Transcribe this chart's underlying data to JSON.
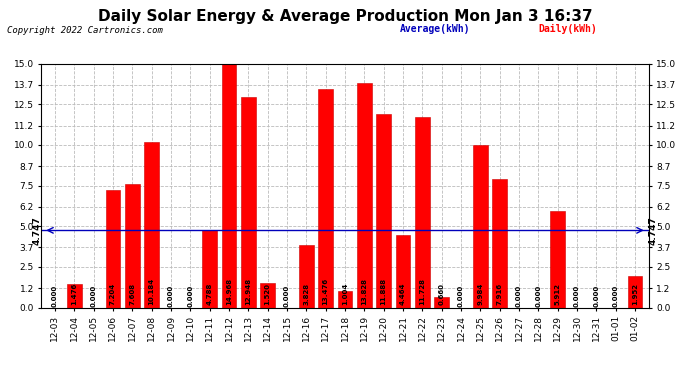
{
  "title": "Daily Solar Energy & Average Production Mon Jan 3 16:37",
  "copyright": "Copyright 2022 Cartronics.com",
  "average_label": "Average(kWh)",
  "daily_label": "Daily(kWh)",
  "average_value": 4.747,
  "categories": [
    "12-03",
    "12-04",
    "12-05",
    "12-06",
    "12-07",
    "12-08",
    "12-09",
    "12-10",
    "12-11",
    "12-12",
    "12-13",
    "12-14",
    "12-15",
    "12-16",
    "12-17",
    "12-18",
    "12-19",
    "12-20",
    "12-21",
    "12-22",
    "12-23",
    "12-24",
    "12-25",
    "12-26",
    "12-27",
    "12-28",
    "12-29",
    "12-30",
    "12-31",
    "01-01",
    "01-02"
  ],
  "values": [
    0.0,
    1.476,
    0.0,
    7.204,
    7.608,
    10.184,
    0.0,
    0.0,
    4.788,
    14.968,
    12.948,
    1.52,
    0.0,
    3.828,
    13.476,
    1.004,
    13.828,
    11.888,
    4.464,
    11.728,
    0.66,
    0.0,
    9.984,
    7.916,
    0.0,
    0.0,
    5.912,
    0.0,
    0.0,
    0.0,
    1.952
  ],
  "bar_color": "#ff0000",
  "bar_edge_color": "#cc0000",
  "avg_line_color": "#0000bb",
  "ylim": [
    0.0,
    15.0
  ],
  "yticks": [
    0.0,
    1.2,
    2.5,
    3.7,
    5.0,
    6.2,
    7.5,
    8.7,
    10.0,
    11.2,
    12.5,
    13.7,
    15.0
  ],
  "background_color": "#ffffff",
  "grid_color": "#bbbbbb",
  "title_fontsize": 11,
  "tick_fontsize": 6.5,
  "bar_label_fontsize": 5.0,
  "copyright_fontsize": 6.5
}
